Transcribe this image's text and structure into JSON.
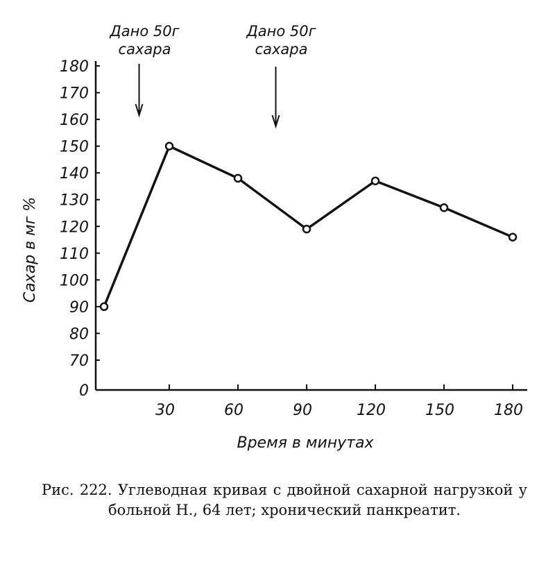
{
  "chart_data": {
    "type": "line",
    "x": [
      0,
      30,
      60,
      90,
      120,
      150,
      180
    ],
    "series": [
      {
        "values": [
          90,
          150,
          138,
          119,
          137,
          127,
          116
        ]
      }
    ],
    "xlabel": "Время в минутах",
    "ylabel": "Сахар в мг %",
    "x_ticks": [
      "30",
      "60",
      "90",
      "120",
      "150",
      "180"
    ],
    "y_ticks": [
      "0",
      "70",
      "80",
      "90",
      "100",
      "110",
      "120",
      "130",
      "140",
      "150",
      "160",
      "170",
      "180"
    ],
    "ylim": [
      0,
      180
    ],
    "xlim": [
      0,
      180
    ],
    "grid": false,
    "annotations": [
      {
        "line1": "Дано 50г",
        "line2": "сахара",
        "x": 15
      },
      {
        "line1": "Дано 50г",
        "line2": "сахара",
        "x": 75
      }
    ]
  },
  "caption": "Рис. 222. Углеводная кривая с двойной сахарной нагрузкой у больной Н., 64 лет; хронический панкреатит."
}
